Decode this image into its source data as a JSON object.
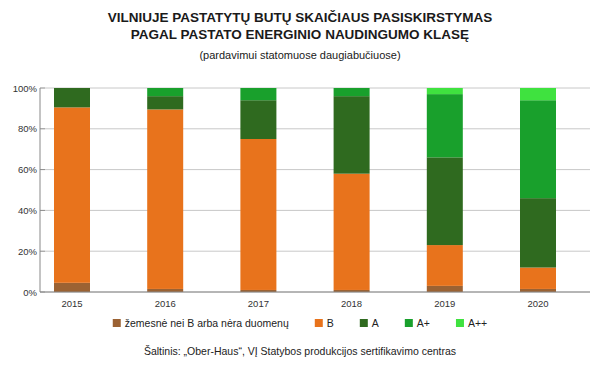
{
  "chart_data": {
    "type": "bar",
    "stacked": true,
    "title": [
      "VILNIUJE PASTATYTŲ BUTŲ SKAIČIAUS PASISKIRSTYMAS",
      "PAGAL PASTATO ENERGINIO NAUDINGUMO KLASĘ"
    ],
    "subtitle": "(pardavimui statomuose daugiabučiuose)",
    "source": "Šaltinis: „Ober-Haus“, VĮ Statybos produkcijos sertifikavimo centras",
    "categories": [
      "2015",
      "2016",
      "2017",
      "2018",
      "2019",
      "2020"
    ],
    "series": [
      {
        "name": "žemesnė nei B arba nėra duomenų",
        "color": "#9b6233",
        "values": [
          4.5,
          1.5,
          1,
          1,
          3,
          1.5
        ]
      },
      {
        "name": "B",
        "color": "#e8731c",
        "values": [
          86,
          88,
          74,
          57,
          20,
          10.5
        ]
      },
      {
        "name": "A",
        "color": "#2f6a1f",
        "values": [
          9.5,
          6.5,
          19,
          38,
          43,
          34
        ]
      },
      {
        "name": "A+",
        "color": "#19a02c",
        "values": [
          0,
          4,
          6,
          4,
          31,
          48
        ]
      },
      {
        "name": "A++",
        "color": "#3fe23f",
        "values": [
          0,
          0,
          0,
          0,
          3,
          6
        ]
      }
    ],
    "ylim": [
      0,
      100
    ],
    "yticks": [
      {
        "value": 0,
        "label": "0%"
      },
      {
        "value": 20,
        "label": "20%"
      },
      {
        "value": 40,
        "label": "40%"
      },
      {
        "value": 60,
        "label": "60%"
      },
      {
        "value": 80,
        "label": "80%"
      },
      {
        "value": 100,
        "label": "100%"
      }
    ],
    "grid": true,
    "legend": "bottom"
  }
}
